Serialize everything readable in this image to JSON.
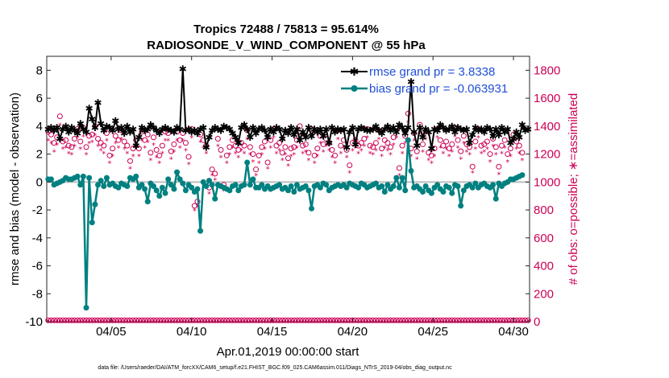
{
  "chart_data": {
    "type": "line",
    "title_line1": "Tropics 72488 / 75813 = 95.614%",
    "title_line2": "RADIOSONDE_V_WIND_COMPONENT @ 55 hPa",
    "xlabel": "Apr.01,2019 00:00:00 start",
    "ylabel_left": "rmse and bias (model - observation)",
    "ylabel_right": "# of obs: o=possible; ∗=assimilated",
    "footer": "data file: /Users/raeder/DAI/ATM_forcXX/CAM6_setup/f.e21.FHIST_BGC.f09_025.CAM6assim.011/Diags_NTrS_2019-04/obs_diag_output.nc",
    "x_range": [
      0.5,
      30.5
    ],
    "ylim_left": [
      -10,
      9
    ],
    "ylim_right": [
      0,
      1900
    ],
    "yticks_left": [
      -10,
      -8,
      -6,
      -4,
      -2,
      0,
      2,
      4,
      6,
      8
    ],
    "yticks_right": [
      0,
      200,
      400,
      600,
      800,
      1000,
      1200,
      1400,
      1600,
      1800
    ],
    "xticks": [
      {
        "value": 4.5,
        "label": "04/05"
      },
      {
        "value": 9.5,
        "label": "04/10"
      },
      {
        "value": 14.5,
        "label": "04/15"
      },
      {
        "value": 19.5,
        "label": "04/20"
      },
      {
        "value": 24.5,
        "label": "04/25"
      },
      {
        "value": 29.5,
        "label": "04/30"
      }
    ],
    "series": [
      {
        "name": "rmse",
        "legend": "rmse grand pr = 3.8338",
        "color": "#000000",
        "values": [
          3.8,
          3.9,
          3.7,
          3.9,
          3.1,
          3.8,
          4.0,
          3.6,
          3.9,
          3.7,
          3.5,
          4.2,
          3.8,
          3.6,
          5.3,
          4.5,
          3.9,
          5.7,
          4.2,
          3.7,
          4.0,
          3.9,
          3.7,
          4.4,
          3.8,
          3.9,
          3.5,
          4.0,
          3.6,
          3.8,
          2.6,
          3.2,
          3.9,
          3.7,
          3.8,
          4.1,
          3.9,
          3.7,
          3.5,
          3.8,
          3.9,
          3.8,
          3.7,
          3.6,
          3.9,
          3.8,
          8.1,
          3.7,
          3.8,
          3.6,
          3.7,
          3.5,
          3.8,
          3.9,
          2.5,
          3.2,
          3.7,
          3.9,
          3.8,
          3.7,
          4.0,
          3.9,
          3.8,
          3.5,
          3.2,
          2.8,
          3.9,
          4.1,
          3.8,
          3.2,
          3.9,
          3.5,
          3.8,
          3.9,
          3.7,
          3.2,
          3.8,
          3.6,
          3.9,
          3.8,
          3.1,
          3.7,
          3.5,
          3.9,
          3.4,
          3.8,
          3.0,
          3.6,
          3.2,
          3.9,
          3.3,
          3.8,
          3.6,
          3.8,
          3.3,
          3.8,
          2.8,
          3.9,
          3.6,
          3.8,
          3.7,
          3.8,
          2.5,
          3.6,
          3.9,
          2.7,
          3.8,
          3.9,
          3.8,
          3.7,
          3.7,
          3.8,
          4.0,
          3.7,
          3.5,
          3.8,
          4.0,
          3.7,
          3.9,
          3.6,
          4.1,
          3.9,
          3.5,
          3.9,
          7.2,
          3.6,
          2.6,
          3.9,
          3.2,
          3.8,
          3.6,
          2.4,
          3.8,
          3.7,
          4.1,
          3.9,
          3.7,
          3.8,
          4.0,
          3.6,
          3.9,
          3.8,
          3.7,
          3.8,
          2.8,
          3.4,
          3.9,
          3.7,
          3.8,
          3.6,
          3.9,
          3.8,
          3.3,
          3.8,
          3.4,
          3.9,
          3.6,
          3.8,
          2.8,
          3.1,
          3.6,
          3.2,
          4.1,
          3.7,
          3.8
        ],
        "marker": "asterisk"
      },
      {
        "name": "bias",
        "legend": "bias grand pr = -0.063931",
        "color": "#008080",
        "values": [
          0.2,
          0.2,
          -0.2,
          -0.1,
          0.0,
          0.1,
          0.3,
          0.2,
          0.2,
          0.3,
          0.4,
          -0.2,
          0.4,
          -9.0,
          0.3,
          -2.9,
          -1.6,
          -0.2,
          0.1,
          -0.3,
          0.3,
          -0.2,
          -0.1,
          -0.3,
          -0.4,
          -0.1,
          -0.2,
          -0.3,
          0.3,
          0.2,
          0.4,
          -0.4,
          -0.2,
          -0.5,
          -1.4,
          -0.1,
          -0.3,
          -0.6,
          -1.0,
          -0.4,
          -0.8,
          0.2,
          -0.2,
          -0.5,
          0.7,
          0.2,
          -0.1,
          -0.6,
          -0.2,
          -0.4,
          -0.7,
          -0.5,
          -3.5,
          0.0,
          -0.3,
          0.1,
          -0.2,
          -1.2,
          -0.2,
          -0.3,
          -0.4,
          -0.5,
          -0.6,
          -0.3,
          -0.2,
          -0.6,
          -0.3,
          -0.2,
          1.4,
          -0.2,
          0.2,
          -0.4,
          -0.4,
          -0.2,
          -0.5,
          -0.3,
          -0.5,
          -0.4,
          -0.3,
          -0.2,
          -0.5,
          -0.4,
          -0.6,
          -0.3,
          -0.7,
          -0.2,
          -0.5,
          -0.4,
          -0.3,
          -0.6,
          -1.9,
          -0.3,
          -0.2,
          -0.4,
          -0.1,
          -0.2,
          -0.6,
          -0.4,
          -0.3,
          -0.2,
          -0.3,
          -0.2,
          -0.4,
          -0.1,
          -0.2,
          -0.3,
          -0.4,
          -0.1,
          -0.2,
          -0.4,
          -0.3,
          -0.2,
          -0.1,
          -0.4,
          -0.3,
          -0.7,
          -0.2,
          -0.5,
          -0.3,
          0.3,
          -0.4,
          0.3,
          -0.6,
          3.0,
          0.8,
          -0.4,
          -0.3,
          -0.5,
          -0.7,
          -0.3,
          -0.6,
          -0.8,
          -0.4,
          -0.2,
          -0.5,
          -0.7,
          -0.3,
          -0.4,
          -0.8,
          -0.2,
          -0.3,
          -1.7,
          -0.6,
          -0.3,
          -0.2,
          -0.4,
          -0.1,
          -0.4,
          -0.2,
          -0.1,
          -0.3,
          -0.4,
          -0.2,
          -1.2,
          -0.1,
          -0.3,
          -0.1,
          0.0,
          0.2,
          0.2,
          0.3,
          0.4,
          0.5
        ],
        "marker": "circle"
      }
    ],
    "obs_possible": [
      1360,
      1340,
      1280,
      1320,
      1470,
      1290,
      1300,
      1260,
      1250,
      1310,
      1380,
      1290,
      1390,
      1250,
      1330,
      1340,
      1400,
      1310,
      1280,
      1260,
      1350,
      1190,
      1240,
      1330,
      1300,
      1370,
      1290,
      1260,
      1150,
      1240,
      1300,
      1240,
      1360,
      1300,
      1340,
      1210,
      1320,
      1230,
      1190,
      1260,
      1360,
      1350,
      1220,
      1270,
      1360,
      1300,
      1350,
      1280,
      1180,
      1380,
      830,
      860,
      1340,
      1300,
      1260,
      960,
      1090,
      1060,
      1310,
      1230,
      980,
      1190,
      1250,
      1300,
      1260,
      1230,
      1280,
      1260,
      1370,
      1250,
      1200,
      1090,
      1190,
      1250,
      1290,
      1140,
      1300,
      1380,
      1260,
      1280,
      1210,
      1250,
      1170,
      1240,
      1250,
      1300,
      1400,
      1260,
      1270,
      1210,
      1380,
      1190,
      1240,
      1330,
      1270,
      1310,
      1280,
      1230,
      1190,
      1370,
      1260,
      1300,
      1230,
      1120,
      1280,
      1300,
      1260,
      1280,
      1310,
      1380,
      1260,
      1250,
      1280,
      1370,
      1240,
      1300,
      1280,
      1250,
      1320,
      1380,
      1100,
      1260,
      1330,
      1490,
      1240,
      1350,
      1220,
      1410,
      1270,
      1360,
      1210,
      1190,
      1240,
      1380,
      1300,
      1260,
      1290,
      1240,
      1270,
      1390,
      1300,
      1220,
      1330,
      1270,
      1250,
      1110,
      1290,
      1380,
      1260,
      1270,
      1290,
      1200,
      1310,
      1250,
      1110,
      1260,
      1300,
      1200,
      1240,
      1340,
      1290,
      1260,
      1210
    ],
    "obs_assimilated": [
      1300,
      1280,
      1220,
      1270,
      1410,
      1240,
      1250,
      1210,
      1200,
      1260,
      1320,
      1240,
      1330,
      1200,
      1280,
      1290,
      1340,
      1260,
      1230,
      1210,
      1300,
      1140,
      1190,
      1280,
      1250,
      1310,
      1240,
      1210,
      1100,
      1190,
      1250,
      1190,
      1300,
      1250,
      1290,
      1160,
      1270,
      1180,
      1140,
      1210,
      1300,
      1300,
      1170,
      1220,
      1300,
      1250,
      1300,
      1230,
      1130,
      1320,
      800,
      830,
      1290,
      1250,
      1210,
      920,
      1050,
      1020,
      1260,
      1180,
      940,
      1140,
      1200,
      1250,
      1210,
      1180,
      1230,
      1210,
      1310,
      1200,
      1150,
      1050,
      1140,
      1200,
      1240,
      1100,
      1250,
      1320,
      1210,
      1230,
      1160,
      1200,
      1120,
      1190,
      1200,
      1250,
      1340,
      1210,
      1220,
      1160,
      1320,
      1140,
      1190,
      1280,
      1220,
      1260,
      1230,
      1180,
      1140,
      1310,
      1210,
      1250,
      1180,
      1070,
      1230,
      1250,
      1210,
      1230,
      1260,
      1320,
      1210,
      1200,
      1230,
      1310,
      1190,
      1250,
      1230,
      1200,
      1270,
      1320,
      1050,
      1210,
      1280,
      1430,
      1190,
      1300,
      1170,
      1350,
      1220,
      1310,
      1160,
      1140,
      1190,
      1320,
      1250,
      1210,
      1240,
      1190,
      1220,
      1330,
      1250,
      1170,
      1280,
      1220,
      1200,
      1070,
      1240,
      1320,
      1210,
      1220,
      1240,
      1150,
      1260,
      1200,
      1060,
      1210,
      1250,
      1150,
      1190,
      1290,
      1240,
      1210,
      1160
    ],
    "obs_bottom_value": 10
  }
}
